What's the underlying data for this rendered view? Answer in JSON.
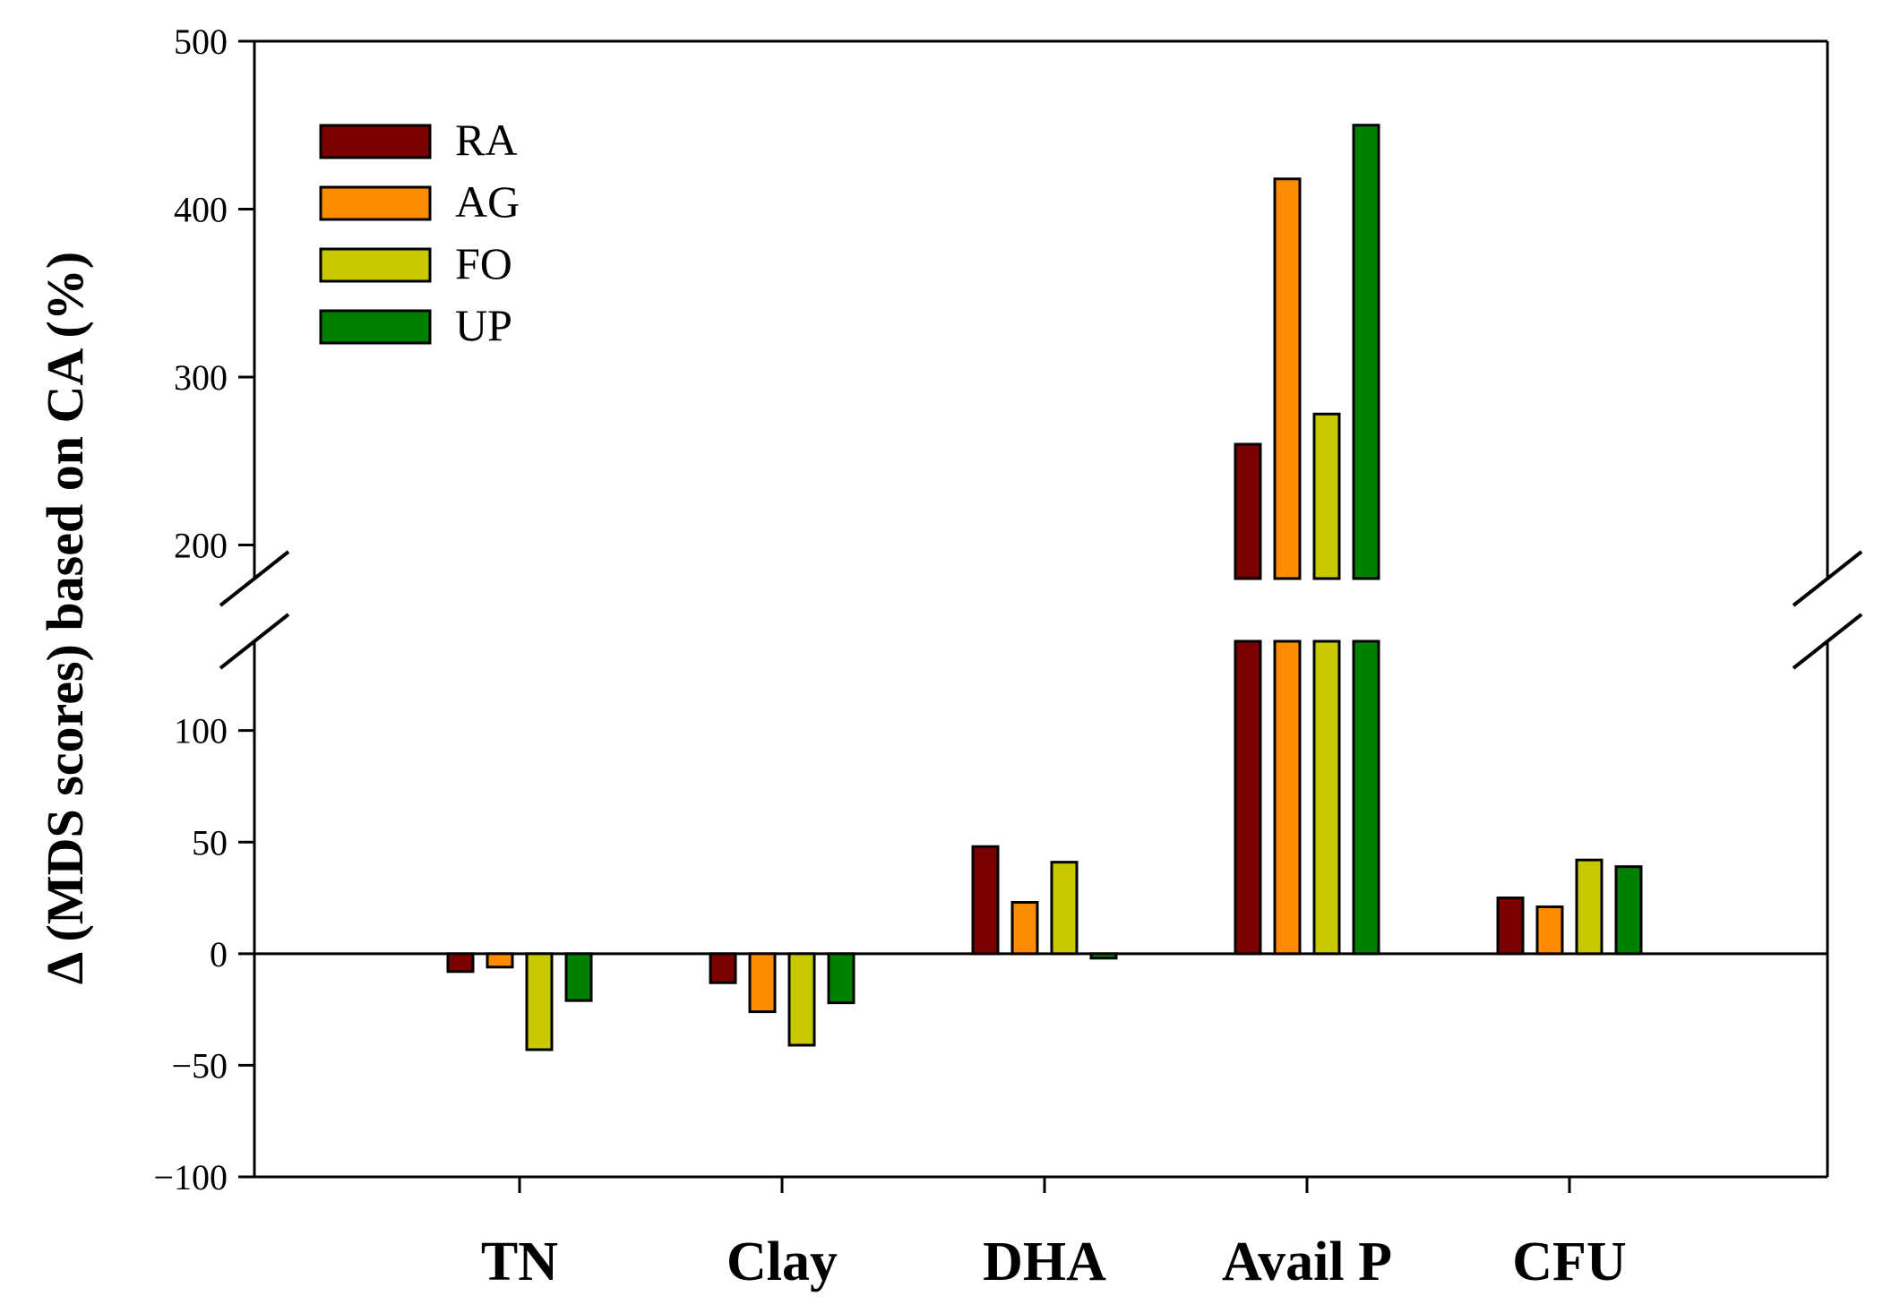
{
  "chart_data": {
    "type": "bar",
    "title": "",
    "xlabel": "",
    "ylabel": "Δ (MDS scores) based on CA (%)",
    "categories": [
      "TN",
      "Clay",
      "DHA",
      "Avail P",
      "CFU"
    ],
    "series": [
      {
        "name": "RA",
        "color": "#7B0000",
        "values": [
          -8,
          -13,
          48,
          260,
          25
        ]
      },
      {
        "name": "AG",
        "color": "#FF8C00",
        "values": [
          -6,
          -26,
          23,
          418,
          21
        ]
      },
      {
        "name": "FO",
        "color": "#C8C800",
        "values": [
          -43,
          -41,
          41,
          278,
          42
        ]
      },
      {
        "name": "UP",
        "color": "#008000",
        "values": [
          -21,
          -22,
          -2,
          450,
          39
        ]
      }
    ],
    "axis_break": {
      "lower_range": [
        -100,
        140
      ],
      "upper_range": [
        180,
        500
      ]
    },
    "lower_ticks": [
      "−100",
      "−50",
      "0",
      "50",
      "100"
    ],
    "lower_tick_values": [
      -100,
      -50,
      0,
      50,
      100
    ],
    "upper_ticks": [
      "200",
      "300",
      "400",
      "500"
    ],
    "upper_tick_values": [
      200,
      300,
      400,
      500
    ],
    "legend_position": "top-left",
    "zero_line": true
  }
}
